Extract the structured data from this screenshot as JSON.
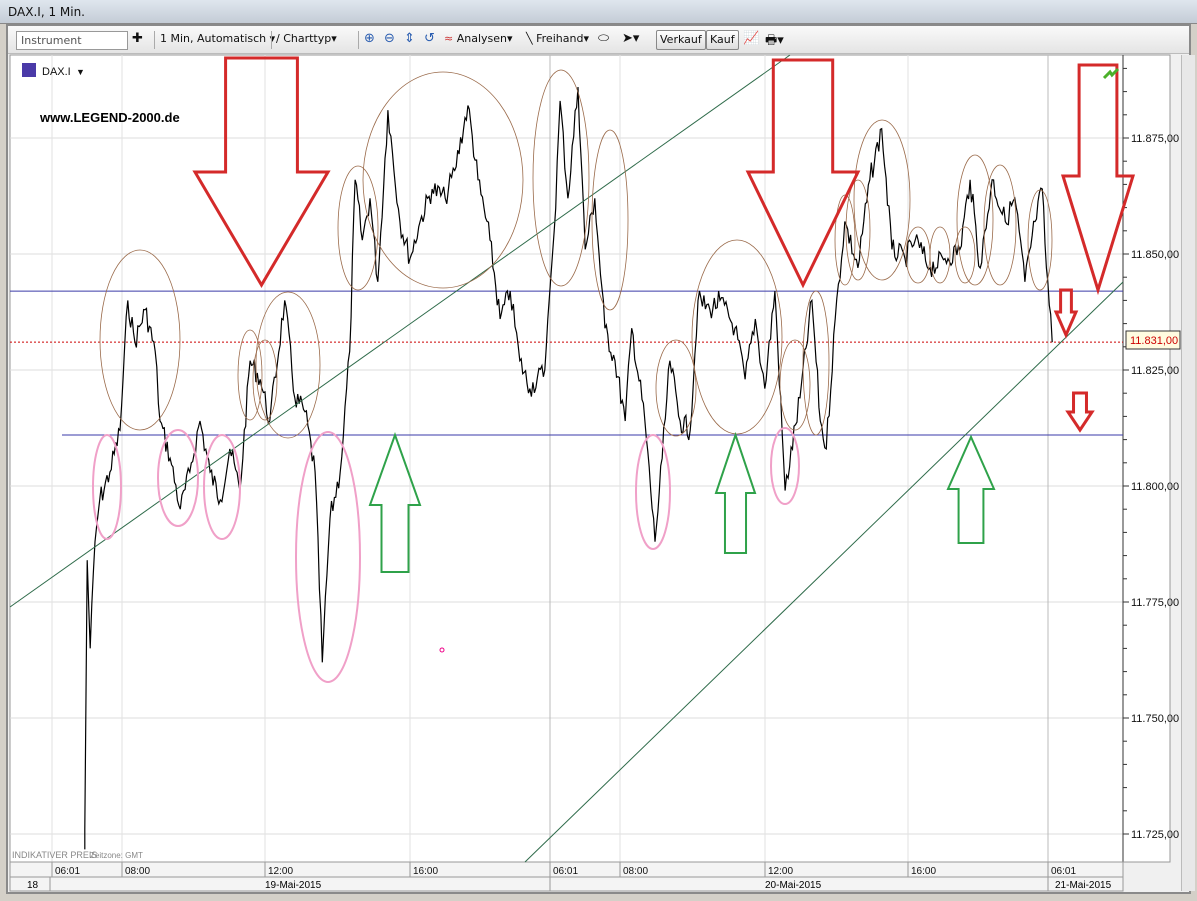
{
  "window": {
    "title": "DAX.I, 1 Min."
  },
  "toolbar": {
    "instrument_placeholder": "Instrument",
    "interval": "1 Min,  Automatisch",
    "charttype": "Charttyp",
    "analysen": "Analysen",
    "freihand": "Freihand",
    "verkauf": "Verkauf",
    "kauf": "Kauf"
  },
  "chart": {
    "symbol": "DAX.I",
    "watermark": "www.LEGEND-2000.de",
    "footer": "INDIKATIVER PREIS",
    "timezone": "Zeitzone: GMT",
    "last_price": "11.831,00",
    "y_ticks": [
      "11.875,00",
      "11.850,00",
      "11.825,00",
      "11.800,00",
      "11.775,00",
      "11.750,00",
      "11.725,00"
    ],
    "x_ticks": [
      "06:01",
      "08:00",
      "12:00",
      "16:00",
      "06:01",
      "08:00",
      "12:00",
      "16:00",
      "06:01"
    ],
    "dates": [
      "18",
      "19-Mai-2015",
      "20-Mai-2015",
      "21-Mai-2015"
    ],
    "colors": {
      "price": "#000000",
      "support": "#3a3aa8",
      "trend": "#2e6b4a",
      "down_arrow": "#d42a2a",
      "up_arrow": "#2fa24a",
      "last": "#cc0000"
    }
  },
  "chart_data": {
    "type": "line",
    "title": "DAX.I, 1 Min.",
    "ylim": [
      11715,
      11890
    ],
    "series": [
      {
        "values": [
          [
            "19 06:56",
            11726
          ],
          [
            "19 07:00",
            11784
          ],
          [
            "19 07:05",
            11765
          ],
          [
            "19 07:13",
            11788
          ],
          [
            "19 07:21",
            11797
          ],
          [
            "19 07:38",
            11803
          ],
          [
            "19 07:55",
            11812
          ],
          [
            "19 08:08",
            11840
          ],
          [
            "19 08:20",
            11831
          ],
          [
            "19 08:37",
            11838
          ],
          [
            "19 08:54",
            11829
          ],
          [
            "19 09:02",
            11814
          ],
          [
            "19 09:19",
            11806
          ],
          [
            "19 09:36",
            11795
          ],
          [
            "19 09:52",
            11803
          ],
          [
            "19 10:09",
            11814
          ],
          [
            "19 10:26",
            11803
          ],
          [
            "19 10:43",
            11797
          ],
          [
            "19 10:59",
            11808
          ],
          [
            "19 11:16",
            11799
          ],
          [
            "19 11:33",
            11827
          ],
          [
            "19 11:50",
            11823
          ],
          [
            "19 12:06",
            11814
          ],
          [
            "19 12:31",
            11840
          ],
          [
            "19 12:48",
            11819
          ],
          [
            "19 13:05",
            11816
          ],
          [
            "19 13:22",
            11803
          ],
          [
            "19 13:34",
            11762
          ],
          [
            "19 13:47",
            11793
          ],
          [
            "19 14:04",
            11803
          ],
          [
            "19 14:20",
            11829
          ],
          [
            "19 14:29",
            11866
          ],
          [
            "19 14:41",
            11853
          ],
          [
            "19 14:54",
            11862
          ],
          [
            "19 15:07",
            11844
          ],
          [
            "19 15:24",
            11881
          ],
          [
            "19 15:44",
            11857
          ],
          [
            "19 16:01",
            11849
          ],
          [
            "19 16:18",
            11857
          ],
          [
            "19 16:38",
            11864
          ],
          [
            "19 17:00",
            11862
          ],
          [
            "19 17:16",
            11868
          ],
          [
            "19 17:38",
            11882
          ],
          [
            "19 17:55",
            11866
          ],
          [
            "19 18:15",
            11853
          ],
          [
            "19 18:32",
            11836
          ],
          [
            "19 18:49",
            11842
          ],
          [
            "19 19:05",
            11827
          ],
          [
            "19 19:22",
            11821
          ],
          [
            "19 19:47",
            11825
          ],
          [
            "19 19:52",
            11836
          ],
          [
            "20 06:08",
            11855
          ],
          [
            "20 06:18",
            11883
          ],
          [
            "20 06:31",
            11862
          ],
          [
            "20 06:48",
            11886
          ],
          [
            "20 07:00",
            11851
          ],
          [
            "20 07:16",
            11862
          ],
          [
            "20 07:33",
            11834
          ],
          [
            "20 07:50",
            11827
          ],
          [
            "20 08:07",
            11814
          ],
          [
            "20 08:18",
            11834
          ],
          [
            "20 08:40",
            11814
          ],
          [
            "20 08:57",
            11788
          ],
          [
            "20 09:09",
            11806
          ],
          [
            "20 09:22",
            11827
          ],
          [
            "20 09:39",
            11814
          ],
          [
            "20 09:56",
            11812
          ],
          [
            "20 10:09",
            11840
          ],
          [
            "20 10:29",
            11838
          ],
          [
            "20 10:46",
            11840
          ],
          [
            "20 11:11",
            11834
          ],
          [
            "20 11:28",
            11823
          ],
          [
            "20 11:45",
            11836
          ],
          [
            "20 12:01",
            11821
          ],
          [
            "20 12:18",
            11842
          ],
          [
            "20 12:35",
            11799
          ],
          [
            "20 13:00",
            11819
          ],
          [
            "20 13:20",
            11840
          ],
          [
            "20 13:34",
            11814
          ],
          [
            "20 13:44",
            11808
          ],
          [
            "20 13:59",
            11836
          ],
          [
            "20 14:15",
            11857
          ],
          [
            "20 14:37",
            11847
          ],
          [
            "20 14:57",
            11866
          ],
          [
            "20 15:17",
            11877
          ],
          [
            "20 15:34",
            11851
          ],
          [
            "20 15:56",
            11849
          ],
          [
            "20 16:13",
            11853
          ],
          [
            "20 16:38",
            11847
          ],
          [
            "20 17:03",
            11849
          ],
          [
            "20 17:28",
            11851
          ],
          [
            "20 17:45",
            11866
          ],
          [
            "20 18:02",
            11847
          ],
          [
            "20 18:22",
            11866
          ],
          [
            "20 18:44",
            11857
          ],
          [
            "20 19:00",
            11862
          ],
          [
            "20 19:17",
            11844
          ],
          [
            "20 19:34",
            11857
          ],
          [
            "20 19:46",
            11864
          ],
          [
            "20 19:53",
            11847
          ],
          [
            "21 06:08",
            11831
          ]
        ]
      }
    ],
    "hlines": [
      11842,
      11811,
      11831
    ]
  }
}
